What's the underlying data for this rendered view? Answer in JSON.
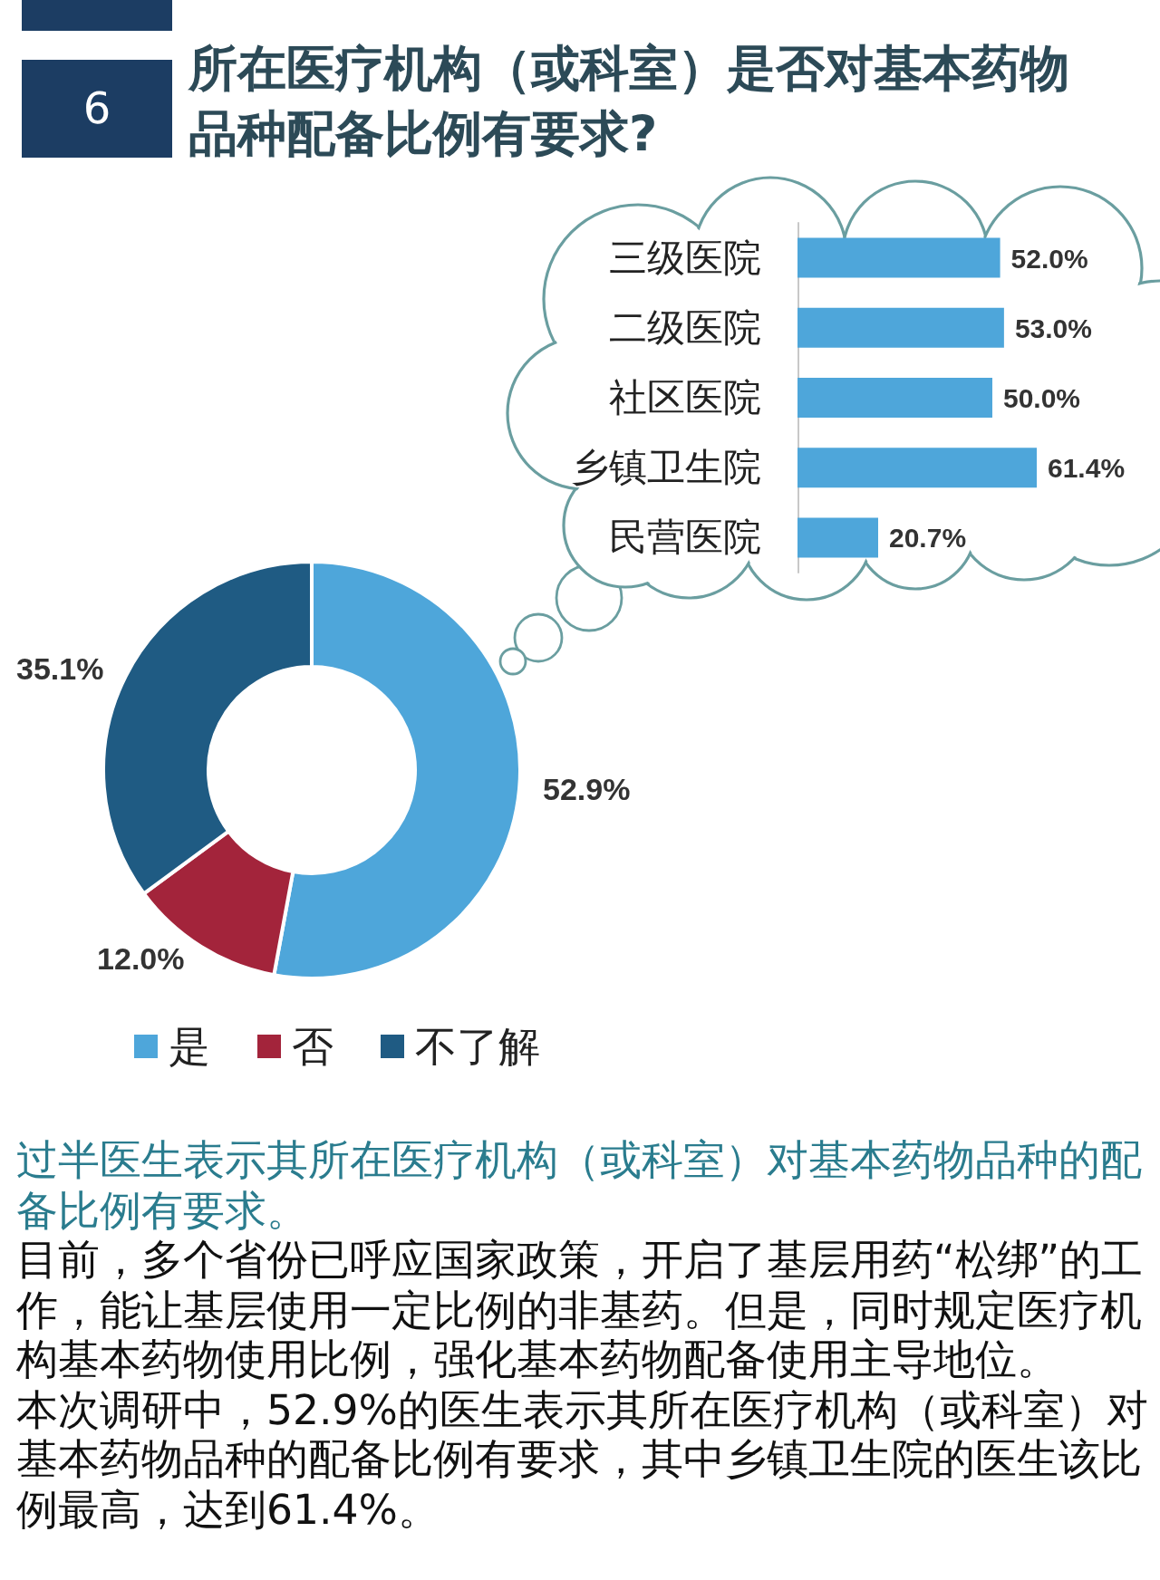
{
  "chart_data": [
    {
      "type": "donut",
      "title": "所在医疗机构（或科室）是否对基本药物品种配备比例有要求?",
      "categories": [
        "是",
        "否",
        "不了解"
      ],
      "values": [
        52.9,
        12.0,
        35.1
      ],
      "colors": [
        "#4ea6da",
        "#a3243b",
        "#1f5b83"
      ],
      "value_labels": [
        "52.9%",
        "12.0%",
        "35.1%"
      ],
      "legend": "bottom",
      "annotations": [
        "6",
        "过半医生表示其所在医疗机构（或科室）对基本药物品种的配备比例有要求。",
        "目前，多个省份已呼应国家政策，开启了基层用药“松绑”的工作，能让基层使用一定比例的非基药。但是，同时规定医疗机构基本药物使用比例，强化基本药物配备使用主导地位。",
        "本次调研中，52.9%的医生表示其所在医疗机构（或科室）对基本药物品种的配备比例有要求，其中乡镇卫生院的医生该比例最高，达到61.4%。"
      ]
    },
    {
      "type": "bar",
      "orientation": "horizontal",
      "categories": [
        "三级医院",
        "二级医院",
        "社区医院",
        "乡镇卫生院",
        "民营医院"
      ],
      "values": [
        52.0,
        53.0,
        50.0,
        61.4,
        20.7
      ],
      "color": "#4ea6da",
      "value_labels": [
        "52.0%",
        "53.0%",
        "50.0%",
        "61.4%",
        "20.7%"
      ],
      "tick_labels": "y"
    }
  ]
}
